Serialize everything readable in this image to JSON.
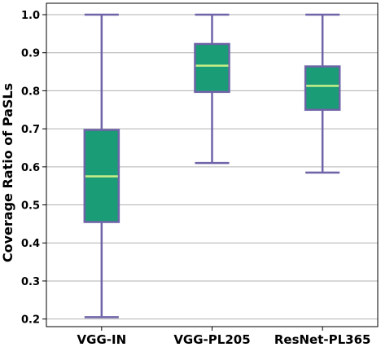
{
  "chart_data": {
    "type": "box",
    "title": "",
    "xlabel": "",
    "ylabel": "Coverage Ratio of PaSLs",
    "ylim": [
      0.18,
      1.03
    ],
    "yticks": [
      "0.2",
      "0.3",
      "0.4",
      "0.5",
      "0.6",
      "0.7",
      "0.8",
      "0.9",
      "1.0"
    ],
    "grid": "horizontal",
    "categories": [
      "VGG-IN",
      "VGG-PL205",
      "ResNet-PL365"
    ],
    "boxes": [
      {
        "category": "VGG-IN",
        "min": 0.205,
        "q1": 0.455,
        "median": 0.575,
        "q3": 0.697,
        "max": 1.0
      },
      {
        "category": "VGG-PL205",
        "min": 0.61,
        "q1": 0.797,
        "median": 0.866,
        "q3": 0.923,
        "max": 1.0
      },
      {
        "category": "ResNet-PL365",
        "min": 0.585,
        "q1": 0.75,
        "median": 0.813,
        "q3": 0.864,
        "max": 1.0
      }
    ],
    "colors": {
      "box_fill": "#1a9c76",
      "box_edge": "#6f64a8",
      "median": "#c9ef8a",
      "whisker": "#6f64a8"
    }
  }
}
